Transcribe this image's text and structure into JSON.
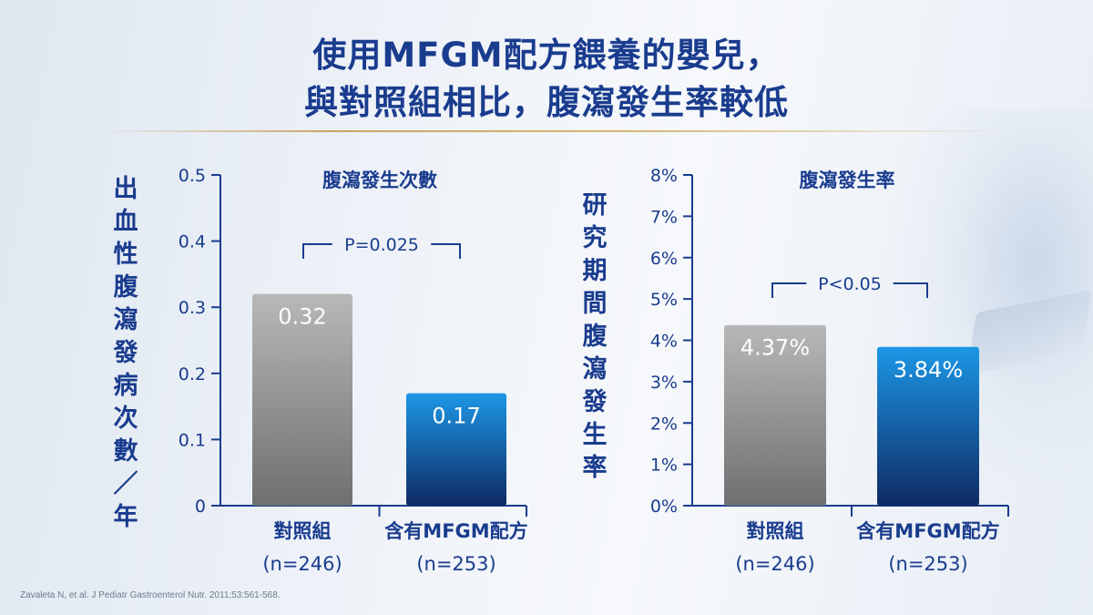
{
  "title_line1": "使用MFGM配方餵養的嬰兒，",
  "title_line2": "與對照組相比，腹瀉發生率較低",
  "colors": {
    "title": "#1a3c8e",
    "axis": "#1a3c8e",
    "control_bar_top": "#b8b8b8",
    "control_bar_bottom": "#6f6f6f",
    "mfgm_bar_top": "#1c97e6",
    "mfgm_bar_bottom": "#0f2a63",
    "gold_rule": "#c9a465"
  },
  "chart_data": [
    {
      "type": "bar",
      "title": "腹瀉發生次數",
      "ylabel": "出血性腹瀉發病次數／年",
      "ylim": [
        0,
        0.5
      ],
      "yticks": [
        "0",
        "0.1",
        "0.2",
        "0.3",
        "0.4",
        "0.5"
      ],
      "ytick_values": [
        0,
        0.1,
        0.2,
        0.3,
        0.4,
        0.5
      ],
      "categories": [
        "對照組",
        "含有MFGM配方"
      ],
      "category_sublabels": [
        "(n=246)",
        "(n=253)"
      ],
      "values": [
        0.32,
        0.17
      ],
      "value_labels": [
        "0.32",
        "0.17"
      ],
      "annotation": "P=0.025"
    },
    {
      "type": "bar",
      "title": "腹瀉發生率",
      "ylabel": "研究期間腹瀉發生率",
      "ylim": [
        0,
        8
      ],
      "yticks": [
        "0%",
        "1%",
        "2%",
        "3%",
        "4%",
        "5%",
        "6%",
        "7%",
        "8%"
      ],
      "ytick_values": [
        0,
        1,
        2,
        3,
        4,
        5,
        6,
        7,
        8
      ],
      "categories": [
        "對照組",
        "含有MFGM配方"
      ],
      "category_sublabels": [
        "(n=246)",
        "(n=253)"
      ],
      "values": [
        4.37,
        3.84
      ],
      "value_labels": [
        "4.37%",
        "3.84%"
      ],
      "annotation": "P<0.05"
    }
  ],
  "footnote": "Zavaleta N, et al. J Pediatr Gastroenterol Nutr. 2011;53:561-568."
}
